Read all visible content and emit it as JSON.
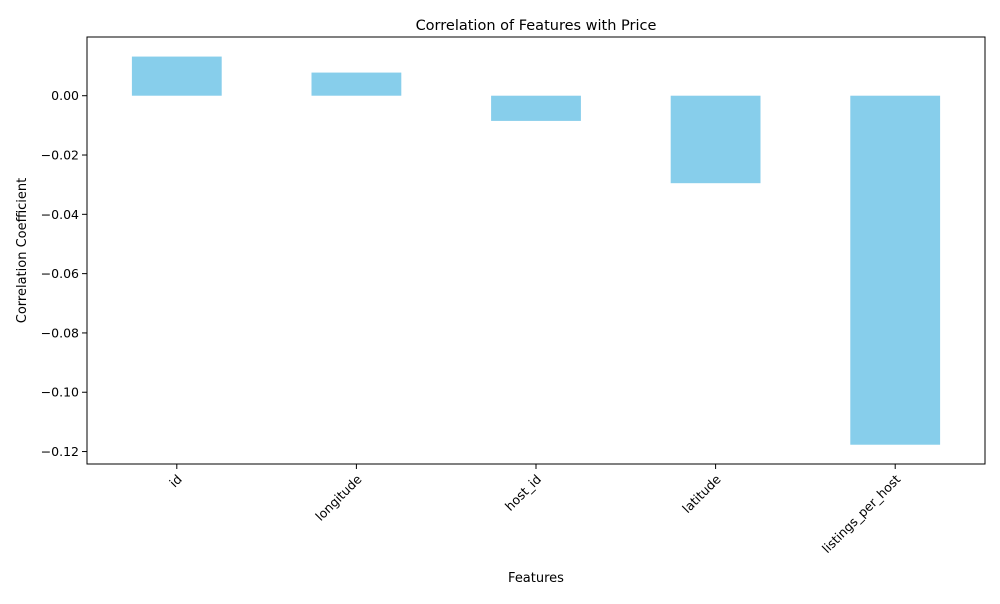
{
  "chart_data": {
    "type": "bar",
    "title": "Correlation of Features with Price",
    "xlabel": "Features",
    "ylabel": "Correlation Coefficient",
    "categories": [
      "id",
      "longitude",
      "host_id",
      "latitude",
      "listings_per_host"
    ],
    "values": [
      0.0132,
      0.0078,
      -0.0085,
      -0.0295,
      -0.1177
    ],
    "ylim": [
      -0.1242,
      0.0198
    ],
    "yticks": [
      0.0,
      -0.02,
      -0.04,
      -0.06,
      -0.08,
      -0.1,
      -0.12
    ],
    "ytick_labels": [
      "0.00",
      "−0.02",
      "−0.04",
      "−0.06",
      "−0.08",
      "−0.10",
      "−0.12"
    ],
    "bar_color": "#87ceeb",
    "grid": false,
    "legend": "none",
    "xtick_rotation_deg": 45
  }
}
